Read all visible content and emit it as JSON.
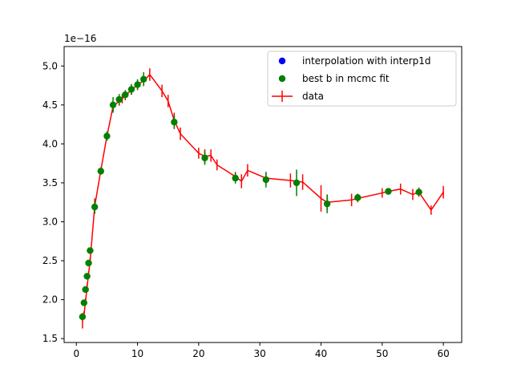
{
  "chart_data": {
    "type": "line",
    "title": "",
    "xlabel": "",
    "ylabel": "",
    "y_offset_label": "1e−16",
    "xlim": [
      -2,
      63
    ],
    "ylim": [
      1.45,
      5.25
    ],
    "xticks": [
      0,
      10,
      20,
      30,
      40,
      50,
      60
    ],
    "yticks": [
      1.5,
      2.0,
      2.5,
      3.0,
      3.5,
      4.0,
      4.5,
      5.0
    ],
    "xtick_labels": [
      "0",
      "10",
      "20",
      "30",
      "40",
      "50",
      "60"
    ],
    "ytick_labels": [
      "1.5",
      "2.0",
      "2.5",
      "3.0",
      "3.5",
      "4.0",
      "4.5",
      "5.0"
    ],
    "grid": false,
    "legend_position": "top-right",
    "series": [
      {
        "name": "data",
        "kind": "errorbar-line",
        "color": "#ff0000",
        "x": [
          1,
          1.25,
          1.5,
          1.75,
          2,
          2.25,
          3,
          4,
          5,
          6,
          7,
          7.5,
          8,
          9,
          10,
          11,
          12,
          14,
          15,
          16,
          17,
          20,
          21,
          22,
          23,
          26,
          27,
          28,
          31,
          35,
          37,
          40,
          41,
          45,
          46,
          50,
          51,
          53,
          55,
          56,
          58,
          60
        ],
        "y": [
          1.73,
          1.8,
          1.98,
          2.16,
          2.33,
          2.5,
          3.2,
          3.66,
          4.1,
          4.48,
          4.55,
          4.58,
          4.62,
          4.69,
          4.76,
          4.81,
          4.89,
          4.68,
          4.55,
          4.3,
          4.13,
          3.88,
          3.84,
          3.85,
          3.73,
          3.58,
          3.52,
          3.66,
          3.56,
          3.53,
          3.51,
          3.3,
          3.25,
          3.28,
          3.3,
          3.37,
          3.39,
          3.42,
          3.35,
          3.38,
          3.15,
          3.38
        ],
        "yerr": [
          0.1,
          0.05,
          0.04,
          0.04,
          0.04,
          0.04,
          0.1,
          0.04,
          0.05,
          0.06,
          0.06,
          0.06,
          0.06,
          0.06,
          0.06,
          0.06,
          0.08,
          0.08,
          0.08,
          0.1,
          0.08,
          0.07,
          0.09,
          0.08,
          0.07,
          0.06,
          0.09,
          0.08,
          0.08,
          0.09,
          0.1,
          0.17,
          0.1,
          0.08,
          0.05,
          0.06,
          0.04,
          0.07,
          0.07,
          0.06,
          0.06,
          0.08
        ]
      },
      {
        "name": "best b in mcmc fit",
        "kind": "scatter-errorbar",
        "color": "#008000",
        "x": [
          1,
          1.25,
          1.5,
          1.75,
          2,
          2.25,
          3,
          4,
          5,
          6,
          7,
          8,
          9,
          10,
          11,
          16,
          21,
          26,
          31,
          36,
          41,
          46,
          51,
          56
        ],
        "y": [
          1.78,
          1.96,
          2.13,
          2.3,
          2.47,
          2.63,
          3.19,
          3.65,
          4.1,
          4.5,
          4.57,
          4.63,
          4.7,
          4.76,
          4.83,
          4.28,
          3.82,
          3.56,
          3.54,
          3.5,
          3.23,
          3.31,
          3.39,
          3.38
        ],
        "yerr": [
          0.03,
          0.03,
          0.03,
          0.03,
          0.03,
          0.03,
          0.08,
          0.03,
          0.06,
          0.1,
          0.07,
          0.06,
          0.07,
          0.07,
          0.09,
          0.09,
          0.09,
          0.07,
          0.1,
          0.17,
          0.12,
          0.05,
          0.03,
          0.04
        ]
      },
      {
        "name": "interpolation with interp1d",
        "kind": "scatter",
        "color": "#0000ff",
        "x": [],
        "y": []
      }
    ],
    "legend": [
      {
        "label": "interpolation with interp1d",
        "marker": "dot",
        "color": "#0000ff"
      },
      {
        "label": "best b in mcmc fit",
        "marker": "dot",
        "color": "#008000"
      },
      {
        "label": "data",
        "marker": "errorbar-line",
        "color": "#ff0000"
      }
    ]
  }
}
